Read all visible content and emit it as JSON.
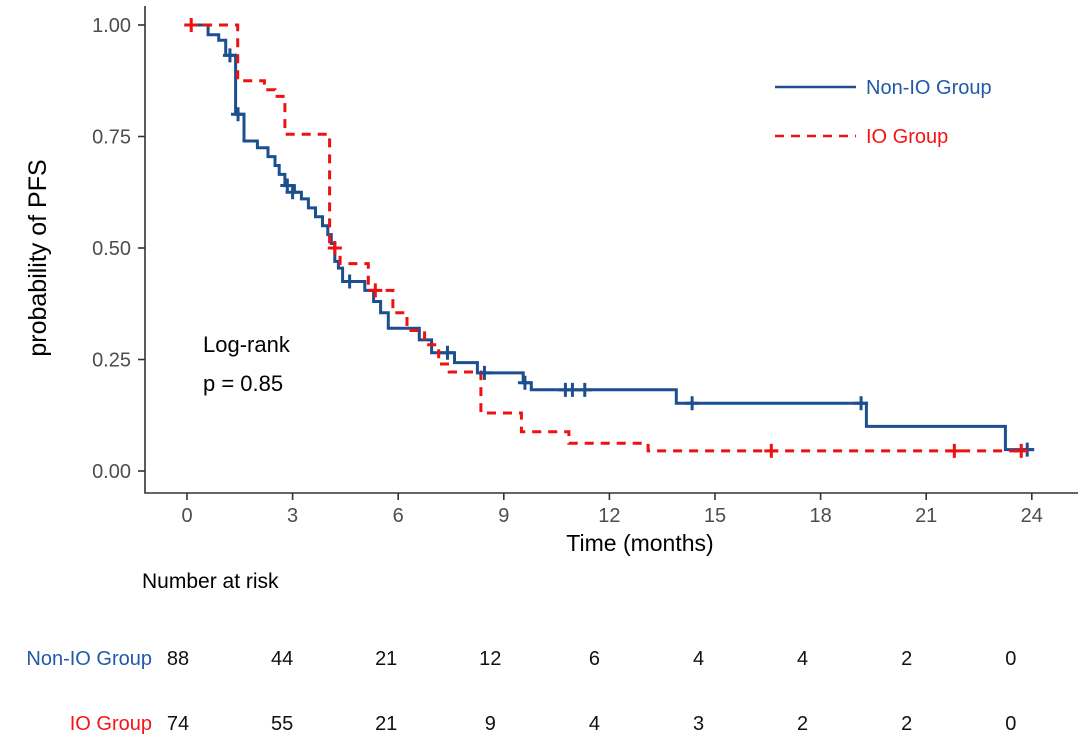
{
  "chart_data": {
    "type": "line",
    "subtype": "kaplan-meier-step",
    "title": "",
    "xlabel": "Time (months)",
    "ylabel": "probability of PFS",
    "xlim": [
      0,
      24
    ],
    "ylim": [
      0,
      1
    ],
    "grid": false,
    "legend_position": "top-right",
    "xticks": [
      0,
      3,
      6,
      9,
      12,
      15,
      18,
      21,
      24
    ],
    "xtick_labels": [
      "0",
      "3",
      "6",
      "9",
      "12",
      "15",
      "18",
      "21",
      "24"
    ],
    "yticks": [
      0,
      0.25,
      0.5,
      0.75,
      1.0
    ],
    "ytick_labels": [
      "0.00",
      "0.25",
      "0.50",
      "0.75",
      "1.00"
    ],
    "annotation": {
      "line1": "Log-rank",
      "line2": "p = 0.85"
    },
    "axis_color": "#333333",
    "tick_label_color": "#4d4d4d",
    "text_color": "#000000",
    "series": [
      {
        "name": "Non-IO Group",
        "color": "#1c4f8f",
        "label_color": "#2059a9",
        "dash": "solid",
        "steps": [
          [
            0,
            1.0
          ],
          [
            0.6,
            0.978
          ],
          [
            0.9,
            0.966
          ],
          [
            1.1,
            0.932
          ],
          [
            1.38,
            0.8
          ],
          [
            1.62,
            0.74
          ],
          [
            2.0,
            0.725
          ],
          [
            2.3,
            0.705
          ],
          [
            2.5,
            0.685
          ],
          [
            2.62,
            0.665
          ],
          [
            2.78,
            0.64
          ],
          [
            3.05,
            0.625
          ],
          [
            3.25,
            0.61
          ],
          [
            3.45,
            0.59
          ],
          [
            3.65,
            0.57
          ],
          [
            3.85,
            0.55
          ],
          [
            4.0,
            0.53
          ],
          [
            4.1,
            0.51
          ],
          [
            4.2,
            0.47
          ],
          [
            4.3,
            0.455
          ],
          [
            4.42,
            0.425
          ],
          [
            5.05,
            0.405
          ],
          [
            5.3,
            0.38
          ],
          [
            5.5,
            0.355
          ],
          [
            5.72,
            0.32
          ],
          [
            6.6,
            0.294
          ],
          [
            6.95,
            0.265
          ],
          [
            7.6,
            0.243
          ],
          [
            8.25,
            0.22
          ],
          [
            9.55,
            0.198
          ],
          [
            9.78,
            0.182
          ],
          [
            13.9,
            0.152
          ],
          [
            19.3,
            0.1
          ],
          [
            23.25,
            0.048
          ],
          [
            24.05,
            0.048
          ]
        ],
        "censors": [
          [
            1.22,
            0.932
          ],
          [
            1.45,
            0.8
          ],
          [
            2.85,
            0.64
          ],
          [
            3.0,
            0.625
          ],
          [
            4.62,
            0.425
          ],
          [
            7.4,
            0.265
          ],
          [
            8.45,
            0.22
          ],
          [
            9.6,
            0.198
          ],
          [
            10.75,
            0.182
          ],
          [
            10.95,
            0.182
          ],
          [
            11.3,
            0.182
          ],
          [
            14.35,
            0.152
          ],
          [
            19.15,
            0.152
          ],
          [
            23.87,
            0.048
          ]
        ]
      },
      {
        "name": "IO Group",
        "color": "#ee1111",
        "label_color": "#f51414",
        "dash": "dashed",
        "steps": [
          [
            0,
            1.0
          ],
          [
            1.44,
            0.875
          ],
          [
            2.2,
            0.855
          ],
          [
            2.5,
            0.84
          ],
          [
            2.78,
            0.755
          ],
          [
            4.05,
            0.5
          ],
          [
            4.35,
            0.465
          ],
          [
            5.15,
            0.405
          ],
          [
            5.85,
            0.355
          ],
          [
            6.25,
            0.315
          ],
          [
            6.75,
            0.283
          ],
          [
            7.15,
            0.24
          ],
          [
            7.45,
            0.222
          ],
          [
            8.35,
            0.13
          ],
          [
            9.5,
            0.088
          ],
          [
            10.85,
            0.062
          ],
          [
            13.1,
            0.045
          ],
          [
            23.78,
            0.045
          ]
        ],
        "censors": [
          [
            0.12,
            1.0
          ],
          [
            4.2,
            0.5
          ],
          [
            5.35,
            0.405
          ],
          [
            16.6,
            0.045
          ],
          [
            21.8,
            0.045
          ],
          [
            23.7,
            0.045
          ]
        ]
      }
    ],
    "risk_table": {
      "title": "Number at risk",
      "times": [
        0,
        3,
        6,
        9,
        12,
        15,
        18,
        21,
        24
      ],
      "rows": [
        {
          "label": "Non-IO Group",
          "color": "#2059a9",
          "values": [
            88,
            44,
            21,
            12,
            6,
            4,
            4,
            2,
            0
          ]
        },
        {
          "label": "IO Group",
          "color": "#f51414",
          "values": [
            74,
            55,
            21,
            9,
            4,
            3,
            2,
            2,
            0
          ]
        }
      ]
    }
  }
}
